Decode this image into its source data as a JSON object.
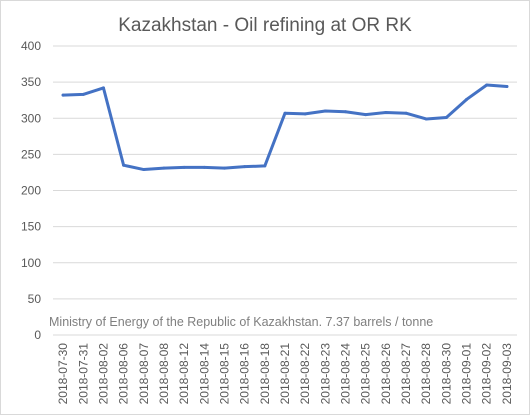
{
  "chart_data": {
    "type": "line",
    "title": "Kazakhstan - Oil refining at OR RK",
    "annotation": "Ministry of Energy of the Republic of Kazakhstan. 7.37 barrels / tonne",
    "xlabel": "",
    "ylabel": "",
    "ylim": [
      0,
      400
    ],
    "yticks": [
      0,
      50,
      100,
      150,
      200,
      250,
      300,
      350,
      400
    ],
    "grid": "horizontal",
    "legend": "none",
    "categories": [
      "2018-07-30",
      "2018-07-31",
      "2018-08-02",
      "2018-08-06",
      "2018-08-07",
      "2018-08-08",
      "2018-08-12",
      "2018-08-14",
      "2018-08-15",
      "2018-08-16",
      "2018-08-18",
      "2018-08-21",
      "2018-08-22",
      "2018-08-23",
      "2018-08-24",
      "2018-08-25",
      "2018-08-26",
      "2018-08-27",
      "2018-08-28",
      "2018-08-30",
      "2018-09-01",
      "2018-09-02",
      "2018-09-03"
    ],
    "series": [
      {
        "color": "#4472c4",
        "values": [
          332,
          333,
          342,
          235,
          229,
          231,
          232,
          232,
          231,
          233,
          234,
          307,
          306,
          310,
          309,
          305,
          308,
          307,
          299,
          301,
          326,
          346,
          344
        ]
      }
    ]
  }
}
